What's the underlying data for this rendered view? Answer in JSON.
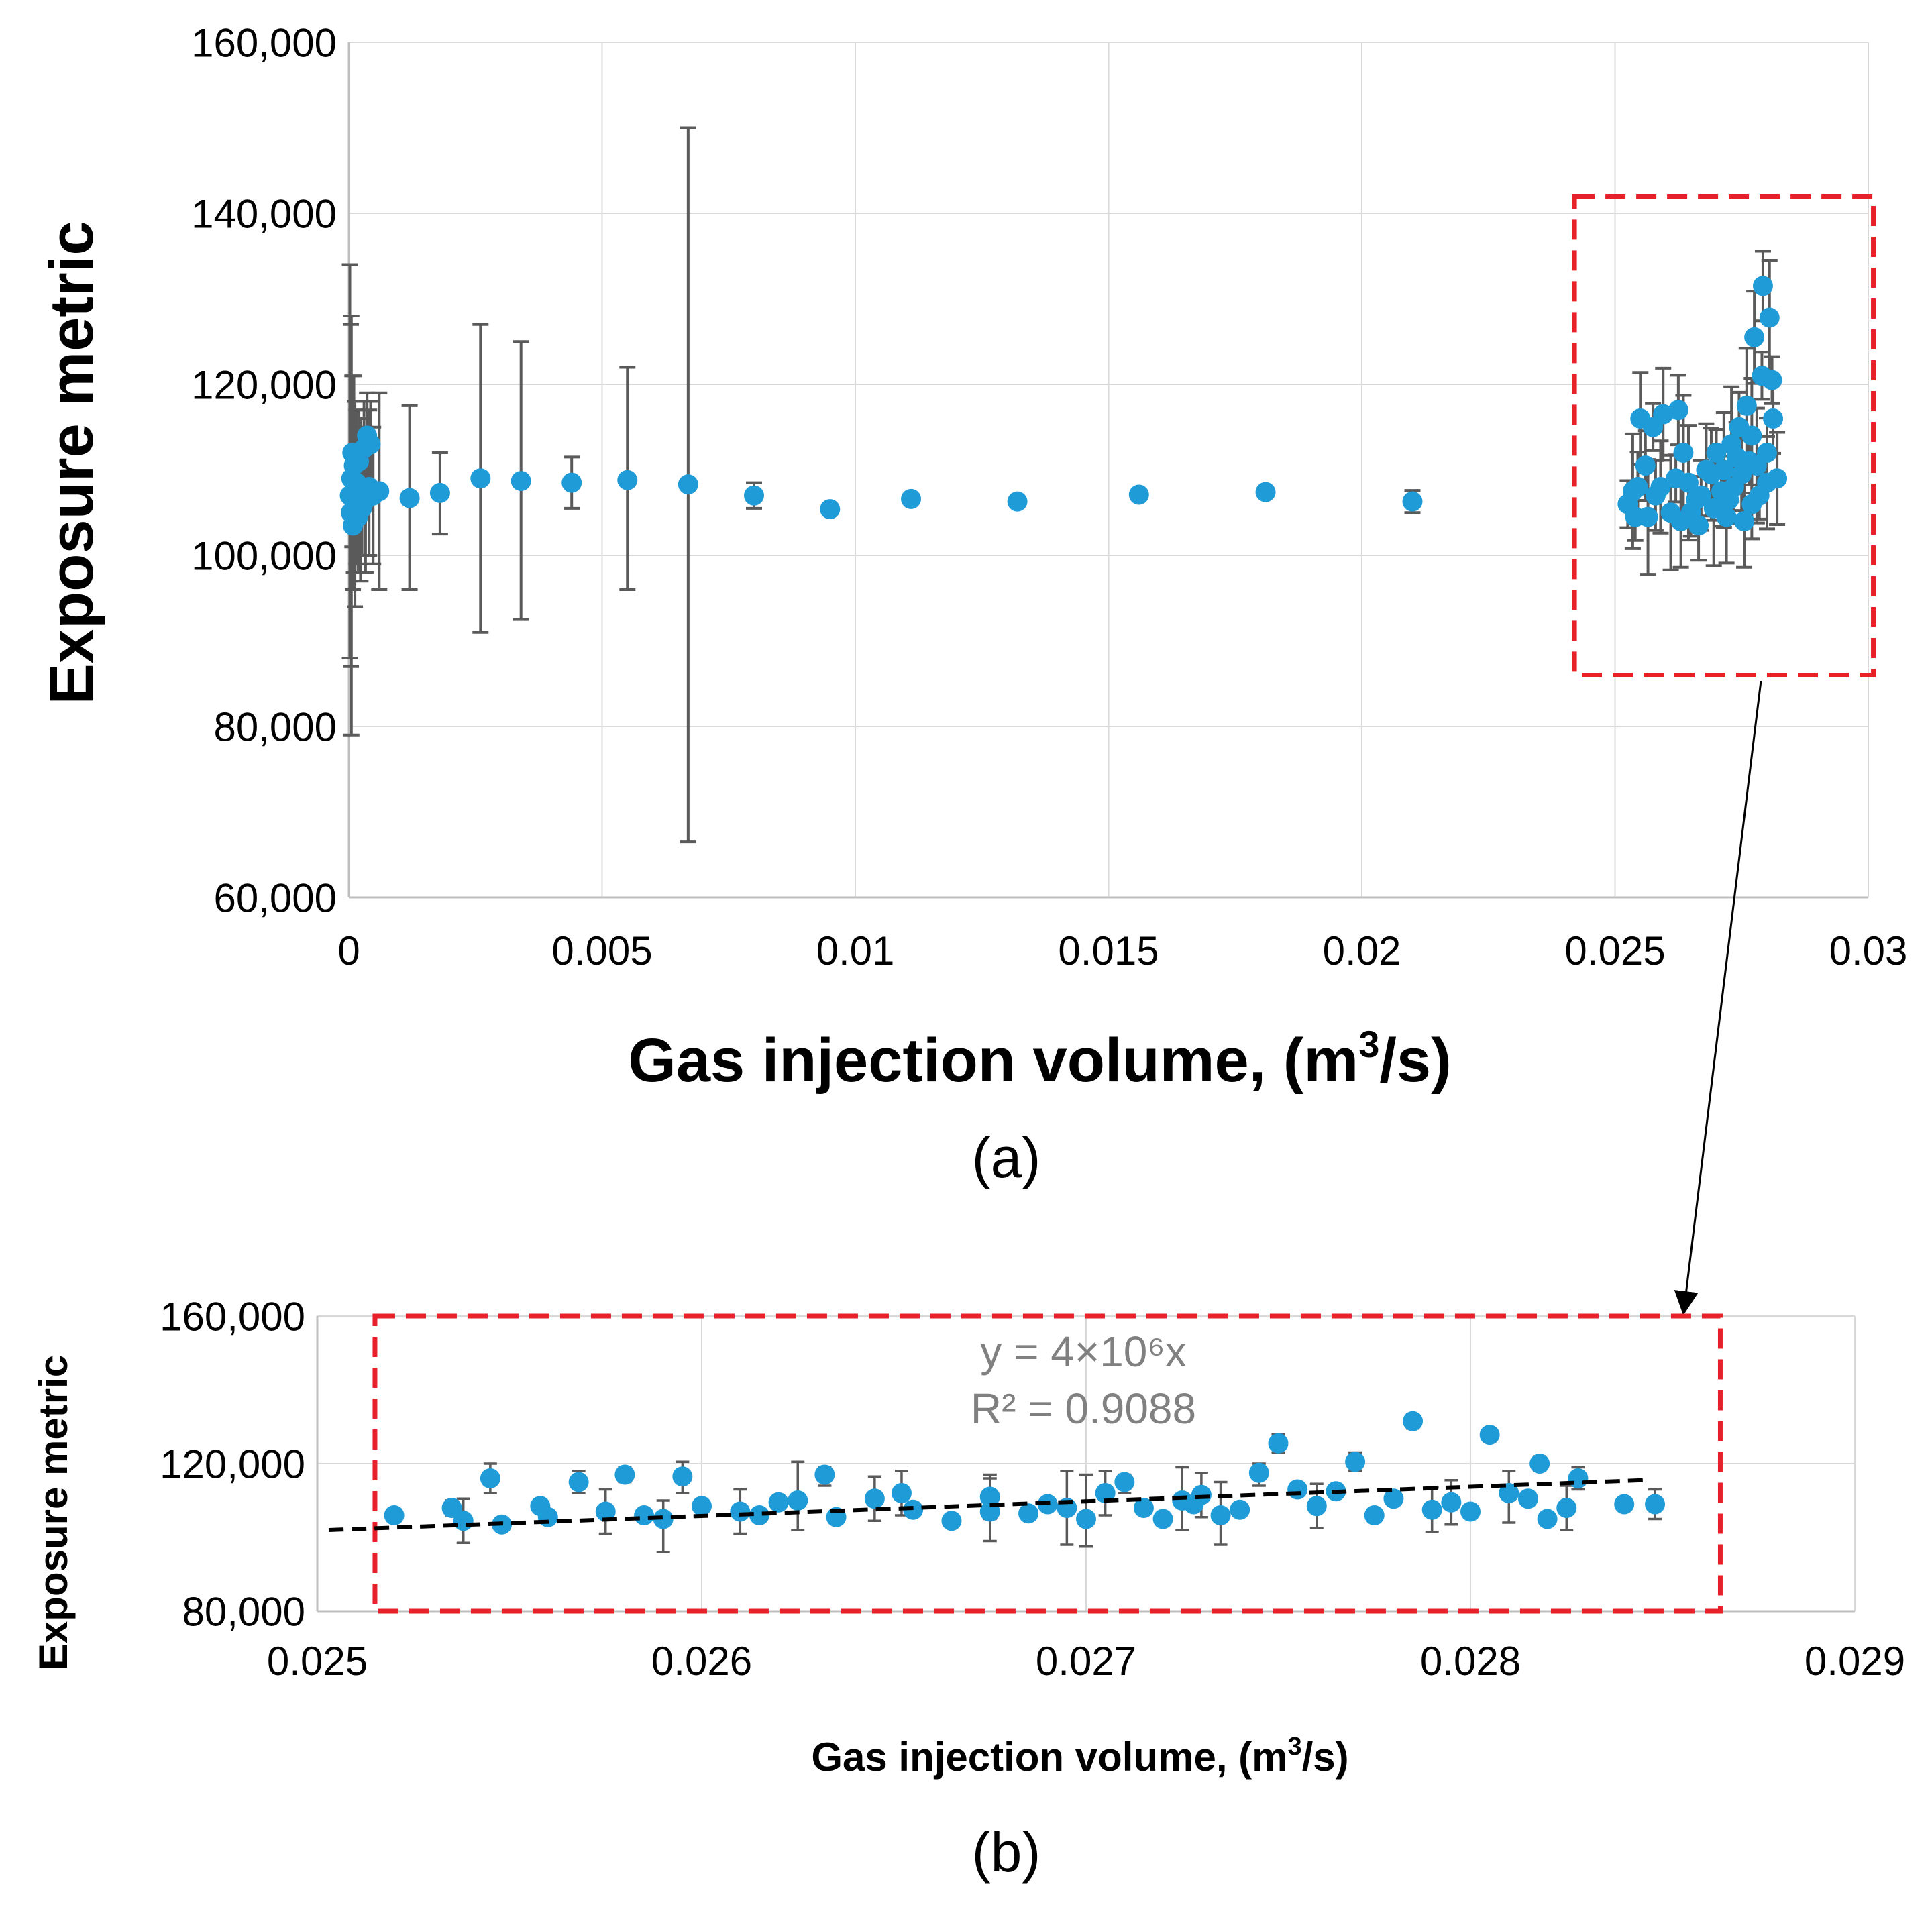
{
  "colors": {
    "marker": "#1f9bd7",
    "error_bar": "#5a5a5a",
    "grid": "#d9d9d9",
    "highlight_box": "#e8202a",
    "trendline": "#000000",
    "equation_text": "#808080",
    "axis_text": "#000000"
  },
  "arrow_label": "arrow-from-highlight-to-zoom",
  "chart_data": [
    {
      "type": "scatter",
      "panel_label": "(a)",
      "xlabel_main": "Gas injection volume, (m",
      "xlabel_sup": "3",
      "xlabel_end": "/s)",
      "ylabel": "Exposure metric",
      "xlim": [
        0,
        0.03
      ],
      "ylim": [
        60000,
        160000
      ],
      "xticks": [
        0,
        0.005,
        0.01,
        0.015,
        0.02,
        0.025,
        0.03
      ],
      "xtick_labels": [
        "0",
        "0.005",
        "0.01",
        "0.015",
        "0.02",
        "0.025",
        "0.03"
      ],
      "yticks": [
        60000,
        80000,
        100000,
        120000,
        140000,
        160000
      ],
      "ytick_labels": [
        "60,000",
        "80,000",
        "100,000",
        "120,000",
        "140,000",
        "160,000"
      ],
      "grid": true,
      "highlight_region": {
        "x": [
          0.0242,
          0.0301
        ],
        "y": [
          86000,
          142000
        ]
      },
      "points": [
        {
          "x": 2e-05,
          "y": 107000,
          "lo": 88000,
          "hi": 134000
        },
        {
          "x": 4e-05,
          "y": 105000,
          "lo": 87000,
          "hi": 127000
        },
        {
          "x": 5e-05,
          "y": 109000,
          "lo": 79000,
          "hi": 128000
        },
        {
          "x": 7e-05,
          "y": 112000,
          "lo": 101000,
          "hi": 121000
        },
        {
          "x": 8e-05,
          "y": 103500,
          "lo": 96000,
          "hi": 112000
        },
        {
          "x": 0.0001,
          "y": 110500,
          "lo": 98000,
          "hi": 121000
        },
        {
          "x": 0.00012,
          "y": 106000,
          "lo": 94000,
          "hi": 118000
        },
        {
          "x": 0.00015,
          "y": 108500,
          "lo": 99000,
          "hi": 117000
        },
        {
          "x": 0.00018,
          "y": 104500,
          "lo": 98000,
          "hi": 111000
        },
        {
          "x": 0.0002,
          "y": 111000,
          "lo": 104000,
          "hi": 117000
        },
        {
          "x": 0.00023,
          "y": 107500,
          "lo": 97000,
          "hi": 116000
        },
        {
          "x": 0.00026,
          "y": 105500,
          "lo": 100000,
          "hi": 111000
        },
        {
          "x": 0.0003,
          "y": 112500,
          "lo": 106000,
          "hi": 118000
        },
        {
          "x": 0.00033,
          "y": 106500,
          "lo": 98000,
          "hi": 115000
        },
        {
          "x": 0.00036,
          "y": 114000,
          "lo": 108000,
          "hi": 119000
        },
        {
          "x": 0.0004,
          "y": 108000,
          "lo": 100000,
          "hi": 117000
        },
        {
          "x": 0.00043,
          "y": 113000,
          "lo": 107000,
          "hi": 118000
        },
        {
          "x": 0.00048,
          "y": 107000,
          "lo": 99000,
          "hi": 115000
        },
        {
          "x": 0.0006,
          "y": 107500,
          "lo": 96000,
          "hi": 119000
        },
        {
          "x": 0.0012,
          "y": 106700,
          "lo": 96000,
          "hi": 117500
        },
        {
          "x": 0.0018,
          "y": 107300,
          "lo": 102500,
          "hi": 112000
        },
        {
          "x": 0.0026,
          "y": 109000,
          "lo": 91000,
          "hi": 127000
        },
        {
          "x": 0.0034,
          "y": 108700,
          "lo": 92500,
          "hi": 125000
        },
        {
          "x": 0.0044,
          "y": 108500,
          "lo": 105500,
          "hi": 111500
        },
        {
          "x": 0.0055,
          "y": 108800,
          "lo": 96000,
          "hi": 122000
        },
        {
          "x": 0.0067,
          "y": 108300,
          "lo": 66500,
          "hi": 150000
        },
        {
          "x": 0.008,
          "y": 107000,
          "lo": 105500,
          "hi": 108500
        },
        {
          "x": 0.0095,
          "y": 105400,
          "lo": 105400,
          "hi": 105400
        },
        {
          "x": 0.0111,
          "y": 106600,
          "lo": 106600,
          "hi": 106600
        },
        {
          "x": 0.0132,
          "y": 106300,
          "lo": 106300,
          "hi": 106300
        },
        {
          "x": 0.0156,
          "y": 107100,
          "lo": 107100,
          "hi": 107100
        },
        {
          "x": 0.0181,
          "y": 107400,
          "lo": 107400,
          "hi": 107400
        },
        {
          "x": 0.021,
          "y": 106300,
          "lo": 105000,
          "hi": 107600
        }
      ],
      "cluster_points": [
        [
          0.02525,
          106000
        ],
        [
          0.02545,
          108000
        ],
        [
          0.0255,
          116000
        ],
        [
          0.02565,
          104500
        ],
        [
          0.02575,
          115000
        ],
        [
          0.0258,
          107000
        ],
        [
          0.02595,
          116500
        ],
        [
          0.0261,
          105000
        ],
        [
          0.0262,
          109000
        ],
        [
          0.02625,
          117000
        ],
        [
          0.0263,
          104000
        ],
        [
          0.02645,
          108500
        ],
        [
          0.0266,
          106500
        ],
        [
          0.02665,
          103500
        ],
        [
          0.0268,
          110000
        ],
        [
          0.02695,
          105500
        ],
        [
          0.027,
          112000
        ],
        [
          0.0271,
          107500
        ],
        [
          0.0272,
          104500
        ],
        [
          0.0273,
          113000
        ],
        [
          0.02735,
          108000
        ],
        [
          0.02745,
          115000
        ],
        [
          0.0275,
          109500
        ],
        [
          0.0276,
          117500
        ],
        [
          0.02765,
          111000
        ],
        [
          0.0277,
          106000
        ],
        [
          0.02775,
          125500
        ],
        [
          0.0278,
          110500
        ],
        [
          0.0279,
          121000
        ],
        [
          0.02792,
          131500
        ],
        [
          0.028,
          108500
        ],
        [
          0.02805,
          127800
        ],
        [
          0.0281,
          120500
        ],
        [
          0.02812,
          116000
        ],
        [
          0.0282,
          109000
        ],
        [
          0.02535,
          107500
        ],
        [
          0.0254,
          104500
        ],
        [
          0.0256,
          110500
        ],
        [
          0.0259,
          108000
        ],
        [
          0.02635,
          112000
        ],
        [
          0.0265,
          105000
        ],
        [
          0.0267,
          107000
        ],
        [
          0.0269,
          109500
        ],
        [
          0.02715,
          110000
        ],
        [
          0.02725,
          106500
        ],
        [
          0.0274,
          111500
        ],
        [
          0.02755,
          104000
        ],
        [
          0.0277,
          114000
        ],
        [
          0.02785,
          107000
        ],
        [
          0.028,
          112000
        ]
      ],
      "cluster_err_lo": 99000,
      "cluster_err_hi": 121000
    },
    {
      "type": "scatter",
      "panel_label": "(b)",
      "xlabel_main": "Gas injection volume, (m",
      "xlabel_sup": "3",
      "xlabel_end": "/s)",
      "ylabel": "Exposure metric",
      "xlim": [
        0.025,
        0.029
      ],
      "ylim": [
        80000,
        160000
      ],
      "xticks": [
        0.025,
        0.026,
        0.027,
        0.028,
        0.029
      ],
      "xtick_labels": [
        "0.025",
        "0.026",
        "0.027",
        "0.028",
        "0.029"
      ],
      "yticks": [
        80000,
        120000,
        160000
      ],
      "ytick_labels": [
        "80,000",
        "120,000",
        "160,000"
      ],
      "grid": true,
      "highlight_region": {
        "x": [
          0.02515,
          0.02865
        ],
        "y": [
          80000,
          160000
        ]
      },
      "equation": "y = 4×10⁶x",
      "r_squared": "R² = 0.9088",
      "trendline": {
        "x": [
          0.02503,
          0.02845
        ],
        "y": [
          102000,
          115500
        ]
      },
      "points": [
        {
          "x": 0.0252,
          "y": 106000,
          "lo": 106000,
          "hi": 106000
        },
        {
          "x": 0.02535,
          "y": 108000,
          "lo": 106000,
          "hi": 110000
        },
        {
          "x": 0.02545,
          "y": 116000,
          "lo": 112000,
          "hi": 120000
        },
        {
          "x": 0.02568,
          "y": 115000,
          "lo": 112000,
          "hi": 118000
        },
        {
          "x": 0.0258,
          "y": 117000,
          "lo": 115000,
          "hi": 119000
        },
        {
          "x": 0.0259,
          "y": 105000,
          "lo": 96000,
          "hi": 110000
        },
        {
          "x": 0.02595,
          "y": 116500,
          "lo": 112000,
          "hi": 120500
        },
        {
          "x": 0.02625,
          "y": 110000,
          "lo": 102000,
          "hi": 120500
        },
        {
          "x": 0.02632,
          "y": 117000,
          "lo": 114000,
          "hi": 119000
        },
        {
          "x": 0.02675,
          "y": 107000,
          "lo": 99000,
          "hi": 116000
        },
        {
          "x": 0.02695,
          "y": 108000,
          "lo": 98000,
          "hi": 118000
        },
        {
          "x": 0.027,
          "y": 105000,
          "lo": 97500,
          "hi": 117000
        },
        {
          "x": 0.0271,
          "y": 115000,
          "lo": 112000,
          "hi": 117000
        },
        {
          "x": 0.02725,
          "y": 110000,
          "lo": 102000,
          "hi": 119000
        },
        {
          "x": 0.02735,
          "y": 106000,
          "lo": 98000,
          "hi": 115000
        },
        {
          "x": 0.02745,
          "y": 117500,
          "lo": 114000,
          "hi": 120000
        },
        {
          "x": 0.0275,
          "y": 125500,
          "lo": 123000,
          "hi": 128000
        },
        {
          "x": 0.0277,
          "y": 120500,
          "lo": 118000,
          "hi": 123000
        },
        {
          "x": 0.02785,
          "y": 131500,
          "lo": 129500,
          "hi": 133500
        },
        {
          "x": 0.02805,
          "y": 127800,
          "lo": 126000,
          "hi": 129500
        },
        {
          "x": 0.0281,
          "y": 112000,
          "lo": 104000,
          "hi": 118000
        },
        {
          "x": 0.02818,
          "y": 120000,
          "lo": 118000,
          "hi": 122000
        },
        {
          "x": 0.02828,
          "y": 116000,
          "lo": 113000,
          "hi": 119000
        },
        {
          "x": 0.0284,
          "y": 109000,
          "lo": 109000,
          "hi": 109000
        },
        {
          "x": 0.02848,
          "y": 109000,
          "lo": 105000,
          "hi": 113000
        }
      ],
      "band_points": [
        [
          0.02538,
          104500
        ],
        [
          0.02548,
          103500
        ],
        [
          0.0256,
          105500
        ],
        [
          0.02575,
          107000
        ],
        [
          0.02585,
          106000
        ],
        [
          0.026,
          108500
        ],
        [
          0.0261,
          107000
        ],
        [
          0.0262,
          109500
        ],
        [
          0.02635,
          105500
        ],
        [
          0.02645,
          110500
        ],
        [
          0.02655,
          107500
        ],
        [
          0.02665,
          104500
        ],
        [
          0.02675,
          111000
        ],
        [
          0.02685,
          106500
        ],
        [
          0.0269,
          109000
        ],
        [
          0.02705,
          112000
        ],
        [
          0.02715,
          108000
        ],
        [
          0.0272,
          105000
        ],
        [
          0.0273,
          111500
        ],
        [
          0.0274,
          107500
        ],
        [
          0.02755,
          113000
        ],
        [
          0.0276,
          108500
        ],
        [
          0.02775,
          106000
        ],
        [
          0.0278,
          110500
        ],
        [
          0.02795,
          109500
        ],
        [
          0.028,
          107000
        ],
        [
          0.0282,
          105000
        ],
        [
          0.02825,
          108000
        ],
        [
          0.02558,
          108500
        ],
        [
          0.02615,
          106000
        ],
        [
          0.02652,
          112000
        ],
        [
          0.02728,
          109000
        ],
        [
          0.02765,
          112500
        ],
        [
          0.0279,
          107500
        ],
        [
          0.02815,
          110500
        ]
      ]
    }
  ]
}
